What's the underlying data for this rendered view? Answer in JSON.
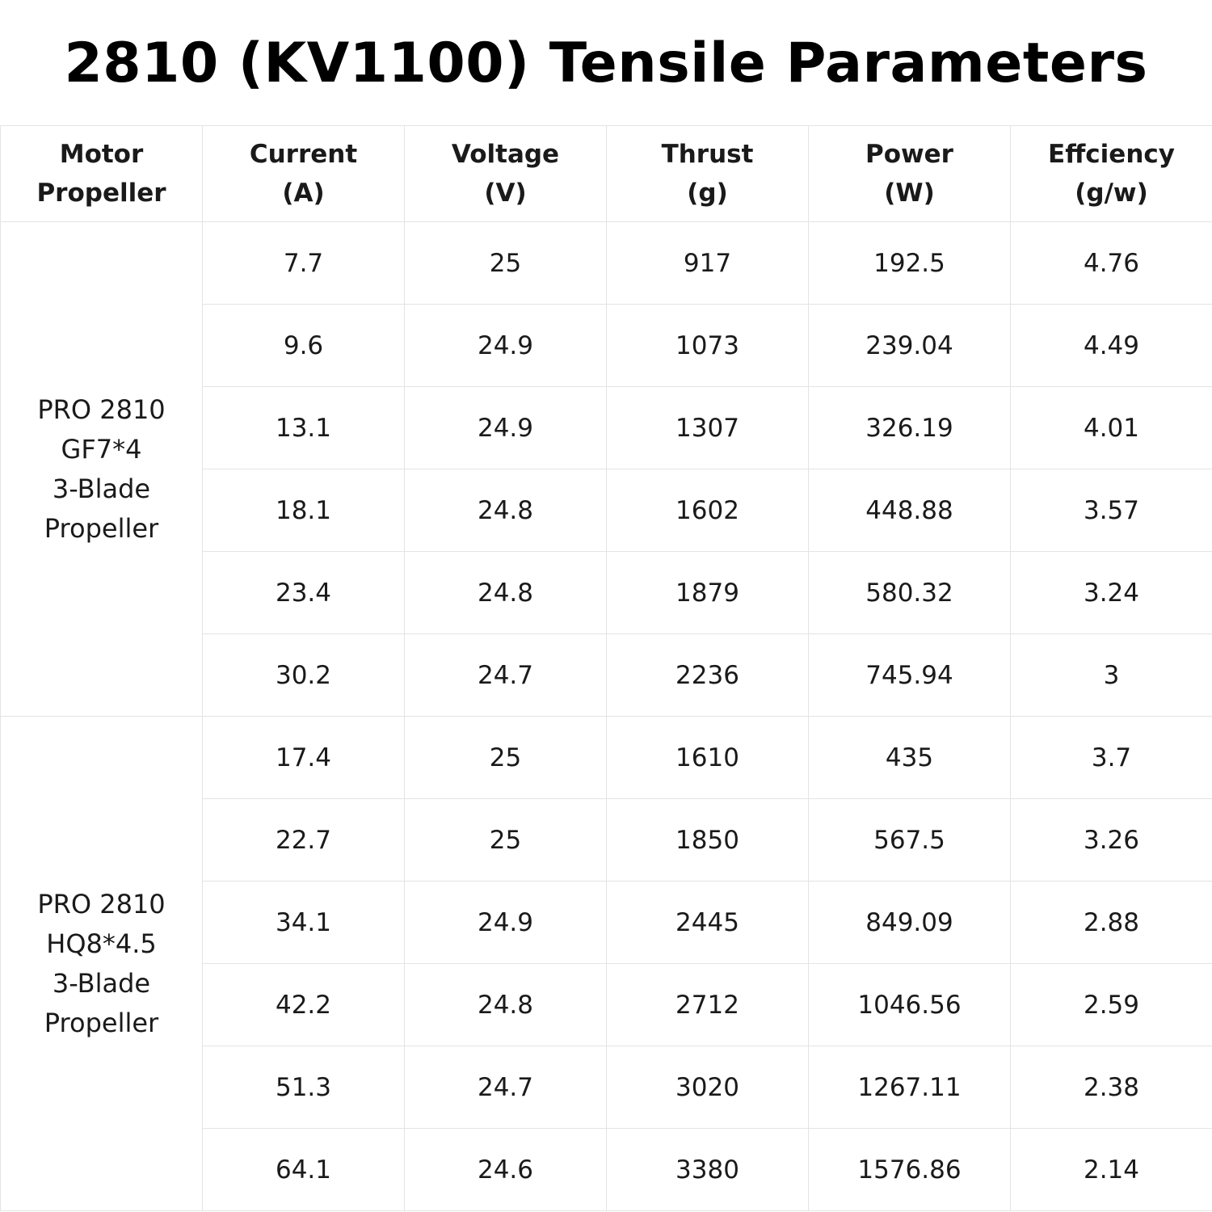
{
  "title": "2810 (KV1100) Tensile Parameters",
  "table": {
    "headers": [
      [
        "Motor",
        "Propeller"
      ],
      [
        "Current",
        "(A)"
      ],
      [
        "Voltage",
        "(V)"
      ],
      [
        "Thrust",
        "(g)"
      ],
      [
        "Power",
        "(W)"
      ],
      [
        "Effciency",
        "(g/w)"
      ]
    ],
    "groups": [
      {
        "label": [
          "PRO 2810",
          "GF7*4",
          "3-Blade",
          "Propeller"
        ],
        "rows": [
          [
            "7.7",
            "25",
            "917",
            "192.5",
            "4.76"
          ],
          [
            "9.6",
            "24.9",
            "1073",
            "239.04",
            "4.49"
          ],
          [
            "13.1",
            "24.9",
            "1307",
            "326.19",
            "4.01"
          ],
          [
            "18.1",
            "24.8",
            "1602",
            "448.88",
            "3.57"
          ],
          [
            "23.4",
            "24.8",
            "1879",
            "580.32",
            "3.24"
          ],
          [
            "30.2",
            "24.7",
            "2236",
            "745.94",
            "3"
          ]
        ]
      },
      {
        "label": [
          "PRO 2810",
          "HQ8*4.5",
          "3-Blade",
          "Propeller"
        ],
        "rows": [
          [
            "17.4",
            "25",
            "1610",
            "435",
            "3.7"
          ],
          [
            "22.7",
            "25",
            "1850",
            "567.5",
            "3.26"
          ],
          [
            "34.1",
            "24.9",
            "2445",
            "849.09",
            "2.88"
          ],
          [
            "42.2",
            "24.8",
            "2712",
            "1046.56",
            "2.59"
          ],
          [
            "51.3",
            "24.7",
            "3020",
            "1267.11",
            "2.38"
          ],
          [
            "64.1",
            "24.6",
            "3380",
            "1576.86",
            "2.14"
          ]
        ]
      }
    ]
  }
}
